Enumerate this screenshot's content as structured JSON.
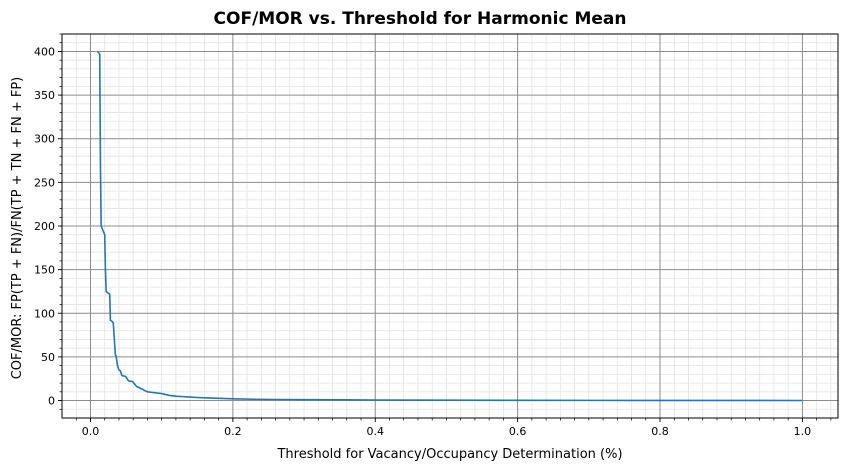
{
  "chart_data": {
    "type": "line",
    "title": "COF/MOR vs. Threshold for Harmonic Mean",
    "xlabel": "Threshold for Vacancy/Occupancy Determination (%)",
    "ylabel": "COF/MOR: FP(TP + FN)/FN(TP + TN + FN + FP)",
    "xlim": [
      -0.04,
      1.05
    ],
    "ylim": [
      -20,
      420
    ],
    "x_ticks": [
      "0.0",
      "0.2",
      "0.4",
      "0.6",
      "0.8",
      "1.0"
    ],
    "y_ticks": [
      "0",
      "50",
      "100",
      "150",
      "200",
      "250",
      "300",
      "350",
      "400"
    ],
    "grid": {
      "major": true,
      "minor": true
    },
    "line_color": "#1f77b4",
    "series": [
      {
        "x": [
          0.01,
          0.013,
          0.014,
          0.015,
          0.02,
          0.021,
          0.022,
          0.025,
          0.027,
          0.028,
          0.03,
          0.032,
          0.035,
          0.036,
          0.038,
          0.04,
          0.042,
          0.044,
          0.046,
          0.048,
          0.05,
          0.053,
          0.055,
          0.058,
          0.06,
          0.063,
          0.065,
          0.068,
          0.07,
          0.073,
          0.075,
          0.08,
          0.085,
          0.09,
          0.095,
          0.1,
          0.105,
          0.11,
          0.12,
          0.13,
          0.14,
          0.15,
          0.165,
          0.18,
          0.2,
          0.23,
          0.26,
          0.3,
          0.35,
          0.4,
          0.5,
          0.6,
          0.7,
          0.8,
          0.9,
          1.0
        ],
        "y": [
          400,
          397,
          270,
          200,
          190,
          150,
          125,
          123,
          122,
          92,
          91,
          89,
          52,
          51,
          40,
          35,
          34,
          29,
          28,
          28,
          27,
          23,
          22,
          22,
          21,
          18,
          16,
          15,
          14,
          13,
          12,
          10,
          9.5,
          9,
          8.5,
          8,
          7,
          6,
          5,
          4.5,
          4,
          3.5,
          3,
          2.5,
          2,
          1.5,
          1.2,
          1,
          0.8,
          0.6,
          0.4,
          0.3,
          0.2,
          0.15,
          0.1,
          0.05
        ]
      }
    ]
  }
}
